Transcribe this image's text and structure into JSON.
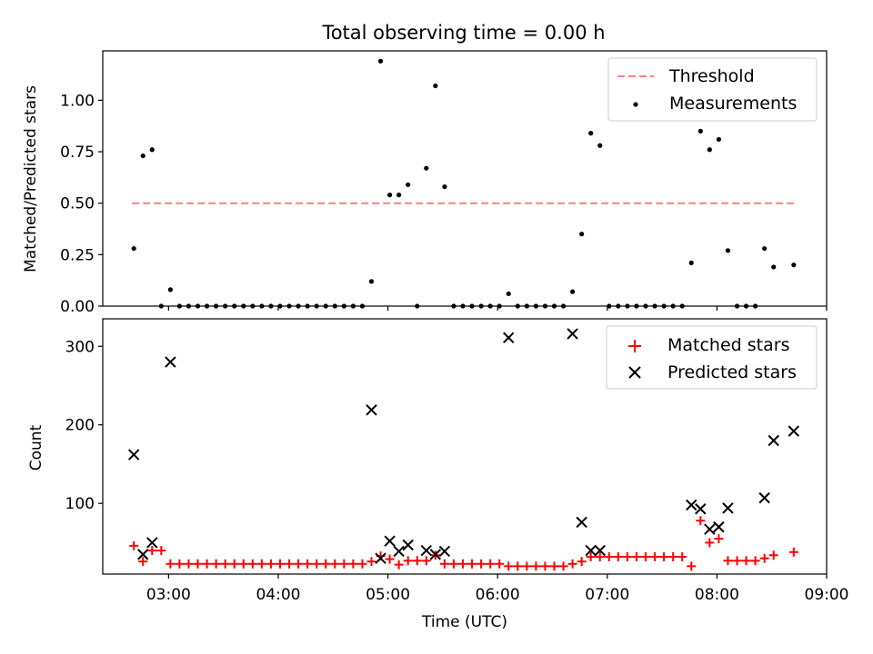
{
  "chart_data": [
    {
      "type": "scatter",
      "title": "Total observing time = 0.00 h",
      "ylabel": "Matched/Predicted stars",
      "xlabel": "",
      "x_axis": "time_utc",
      "xlim": [
        "02:24",
        "09:00"
      ],
      "ylim": [
        0,
        1.24
      ],
      "yticks": [
        0,
        0.25,
        0.5,
        0.75,
        1.0
      ],
      "ytick_labels": [
        "0.00",
        "0.25",
        "0.50",
        "0.75",
        "1.00"
      ],
      "legend_position": "top-right",
      "series": [
        {
          "name": "Threshold",
          "style": "dashed-line",
          "color": "#ff7f7f",
          "points": [
            [
              "02:40",
              0.5
            ],
            [
              "08:43",
              0.5
            ]
          ]
        },
        {
          "name": "Measurements",
          "style": "dot",
          "color": "#000000",
          "points": [
            [
              "02:41",
              0.28
            ],
            [
              "02:46",
              0.73
            ],
            [
              "02:51",
              0.76
            ],
            [
              "02:56",
              0.0
            ],
            [
              "03:01",
              0.08
            ],
            [
              "03:06",
              0.0
            ],
            [
              "03:11",
              0.0
            ],
            [
              "03:16",
              0.0
            ],
            [
              "03:21",
              0.0
            ],
            [
              "03:26",
              0.0
            ],
            [
              "03:31",
              0.0
            ],
            [
              "03:36",
              0.0
            ],
            [
              "03:41",
              0.0
            ],
            [
              "03:46",
              0.0
            ],
            [
              "03:51",
              0.0
            ],
            [
              "03:56",
              0.0
            ],
            [
              "04:01",
              0.0
            ],
            [
              "04:06",
              0.0
            ],
            [
              "04:11",
              0.0
            ],
            [
              "04:16",
              0.0
            ],
            [
              "04:21",
              0.0
            ],
            [
              "04:26",
              0.0
            ],
            [
              "04:31",
              0.0
            ],
            [
              "04:36",
              0.0
            ],
            [
              "04:41",
              0.0
            ],
            [
              "04:46",
              0.0
            ],
            [
              "04:51",
              0.12
            ],
            [
              "04:56",
              1.19
            ],
            [
              "05:01",
              0.54
            ],
            [
              "05:06",
              0.54
            ],
            [
              "05:11",
              0.59
            ],
            [
              "05:16",
              0.0
            ],
            [
              "05:21",
              0.67
            ],
            [
              "05:26",
              1.07
            ],
            [
              "05:31",
              0.58
            ],
            [
              "05:36",
              0.0
            ],
            [
              "05:41",
              0.0
            ],
            [
              "05:46",
              0.0
            ],
            [
              "05:51",
              0.0
            ],
            [
              "05:56",
              0.0
            ],
            [
              "06:01",
              0.0
            ],
            [
              "06:06",
              0.06
            ],
            [
              "06:11",
              0.0
            ],
            [
              "06:16",
              0.0
            ],
            [
              "06:21",
              0.0
            ],
            [
              "06:26",
              0.0
            ],
            [
              "06:31",
              0.0
            ],
            [
              "06:36",
              0.0
            ],
            [
              "06:41",
              0.07
            ],
            [
              "06:46",
              0.35
            ],
            [
              "06:51",
              0.84
            ],
            [
              "06:56",
              0.78
            ],
            [
              "07:01",
              0.0
            ],
            [
              "07:06",
              0.0
            ],
            [
              "07:11",
              0.0
            ],
            [
              "07:16",
              0.0
            ],
            [
              "07:21",
              0.0
            ],
            [
              "07:26",
              0.0
            ],
            [
              "07:31",
              0.0
            ],
            [
              "07:36",
              0.0
            ],
            [
              "07:41",
              0.0
            ],
            [
              "07:46",
              0.21
            ],
            [
              "07:51",
              0.85
            ],
            [
              "07:56",
              0.76
            ],
            [
              "08:01",
              0.81
            ],
            [
              "08:06",
              0.27
            ],
            [
              "08:11",
              0.0
            ],
            [
              "08:16",
              0.0
            ],
            [
              "08:21",
              0.0
            ],
            [
              "08:26",
              0.28
            ],
            [
              "08:31",
              0.19
            ],
            [
              "08:42",
              0.2
            ]
          ]
        }
      ]
    },
    {
      "type": "scatter",
      "title": "",
      "ylabel": "Count",
      "xlabel": "Time (UTC)",
      "x_axis": "time_utc",
      "xlim": [
        "02:24",
        "09:00"
      ],
      "ylim": [
        10,
        335
      ],
      "yticks": [
        100,
        200,
        300
      ],
      "ytick_labels": [
        "100",
        "200",
        "300"
      ],
      "xticks": [
        "03:00",
        "04:00",
        "05:00",
        "06:00",
        "07:00",
        "08:00",
        "09:00"
      ],
      "legend_position": "top-right",
      "series": [
        {
          "name": "Matched stars",
          "style": "plus",
          "color": "#ff0000",
          "points": [
            [
              "02:41",
              46
            ],
            [
              "02:46",
              26
            ],
            [
              "02:51",
              40
            ],
            [
              "02:56",
              40
            ],
            [
              "03:01",
              23
            ],
            [
              "03:06",
              23
            ],
            [
              "03:11",
              23
            ],
            [
              "03:16",
              23
            ],
            [
              "03:21",
              23
            ],
            [
              "03:26",
              23
            ],
            [
              "03:31",
              23
            ],
            [
              "03:36",
              23
            ],
            [
              "03:41",
              23
            ],
            [
              "03:46",
              23
            ],
            [
              "03:51",
              23
            ],
            [
              "03:56",
              23
            ],
            [
              "04:01",
              23
            ],
            [
              "04:06",
              23
            ],
            [
              "04:11",
              23
            ],
            [
              "04:16",
              23
            ],
            [
              "04:21",
              23
            ],
            [
              "04:26",
              23
            ],
            [
              "04:31",
              23
            ],
            [
              "04:36",
              23
            ],
            [
              "04:41",
              23
            ],
            [
              "04:46",
              23
            ],
            [
              "04:51",
              26
            ],
            [
              "04:56",
              33
            ],
            [
              "05:01",
              29
            ],
            [
              "05:06",
              22
            ],
            [
              "05:11",
              27
            ],
            [
              "05:16",
              27
            ],
            [
              "05:21",
              27
            ],
            [
              "05:26",
              34
            ],
            [
              "05:31",
              23
            ],
            [
              "05:36",
              23
            ],
            [
              "05:41",
              23
            ],
            [
              "05:46",
              23
            ],
            [
              "05:51",
              23
            ],
            [
              "05:56",
              23
            ],
            [
              "06:01",
              23
            ],
            [
              "06:06",
              20
            ],
            [
              "06:11",
              20
            ],
            [
              "06:16",
              20
            ],
            [
              "06:21",
              20
            ],
            [
              "06:26",
              20
            ],
            [
              "06:31",
              20
            ],
            [
              "06:36",
              20
            ],
            [
              "06:41",
              23
            ],
            [
              "06:46",
              26
            ],
            [
              "06:51",
              32
            ],
            [
              "06:56",
              32
            ],
            [
              "07:01",
              32
            ],
            [
              "07:06",
              32
            ],
            [
              "07:11",
              32
            ],
            [
              "07:16",
              32
            ],
            [
              "07:21",
              32
            ],
            [
              "07:26",
              32
            ],
            [
              "07:31",
              32
            ],
            [
              "07:36",
              32
            ],
            [
              "07:41",
              32
            ],
            [
              "07:46",
              20
            ],
            [
              "07:51",
              78
            ],
            [
              "07:56",
              50
            ],
            [
              "08:01",
              55
            ],
            [
              "08:06",
              27
            ],
            [
              "08:11",
              27
            ],
            [
              "08:16",
              27
            ],
            [
              "08:21",
              27
            ],
            [
              "08:26",
              30
            ],
            [
              "08:31",
              34
            ],
            [
              "08:42",
              38
            ]
          ]
        },
        {
          "name": "Predicted stars",
          "style": "cross",
          "color": "#000000",
          "points": [
            [
              "02:41",
              162
            ],
            [
              "02:46",
              35
            ],
            [
              "02:51",
              50
            ],
            [
              "03:01",
              280
            ],
            [
              "04:51",
              219
            ],
            [
              "04:56",
              30
            ],
            [
              "05:01",
              52
            ],
            [
              "05:06",
              39
            ],
            [
              "05:11",
              47
            ],
            [
              "05:21",
              40
            ],
            [
              "05:26",
              35
            ],
            [
              "05:31",
              39
            ],
            [
              "06:06",
              311
            ],
            [
              "06:41",
              316
            ],
            [
              "06:46",
              76
            ],
            [
              "06:51",
              40
            ],
            [
              "06:56",
              40
            ],
            [
              "07:46",
              98
            ],
            [
              "07:51",
              93
            ],
            [
              "07:56",
              67
            ],
            [
              "08:01",
              70
            ],
            [
              "08:06",
              94
            ],
            [
              "08:26",
              107
            ],
            [
              "08:31",
              180
            ],
            [
              "08:42",
              192
            ]
          ]
        }
      ]
    }
  ]
}
